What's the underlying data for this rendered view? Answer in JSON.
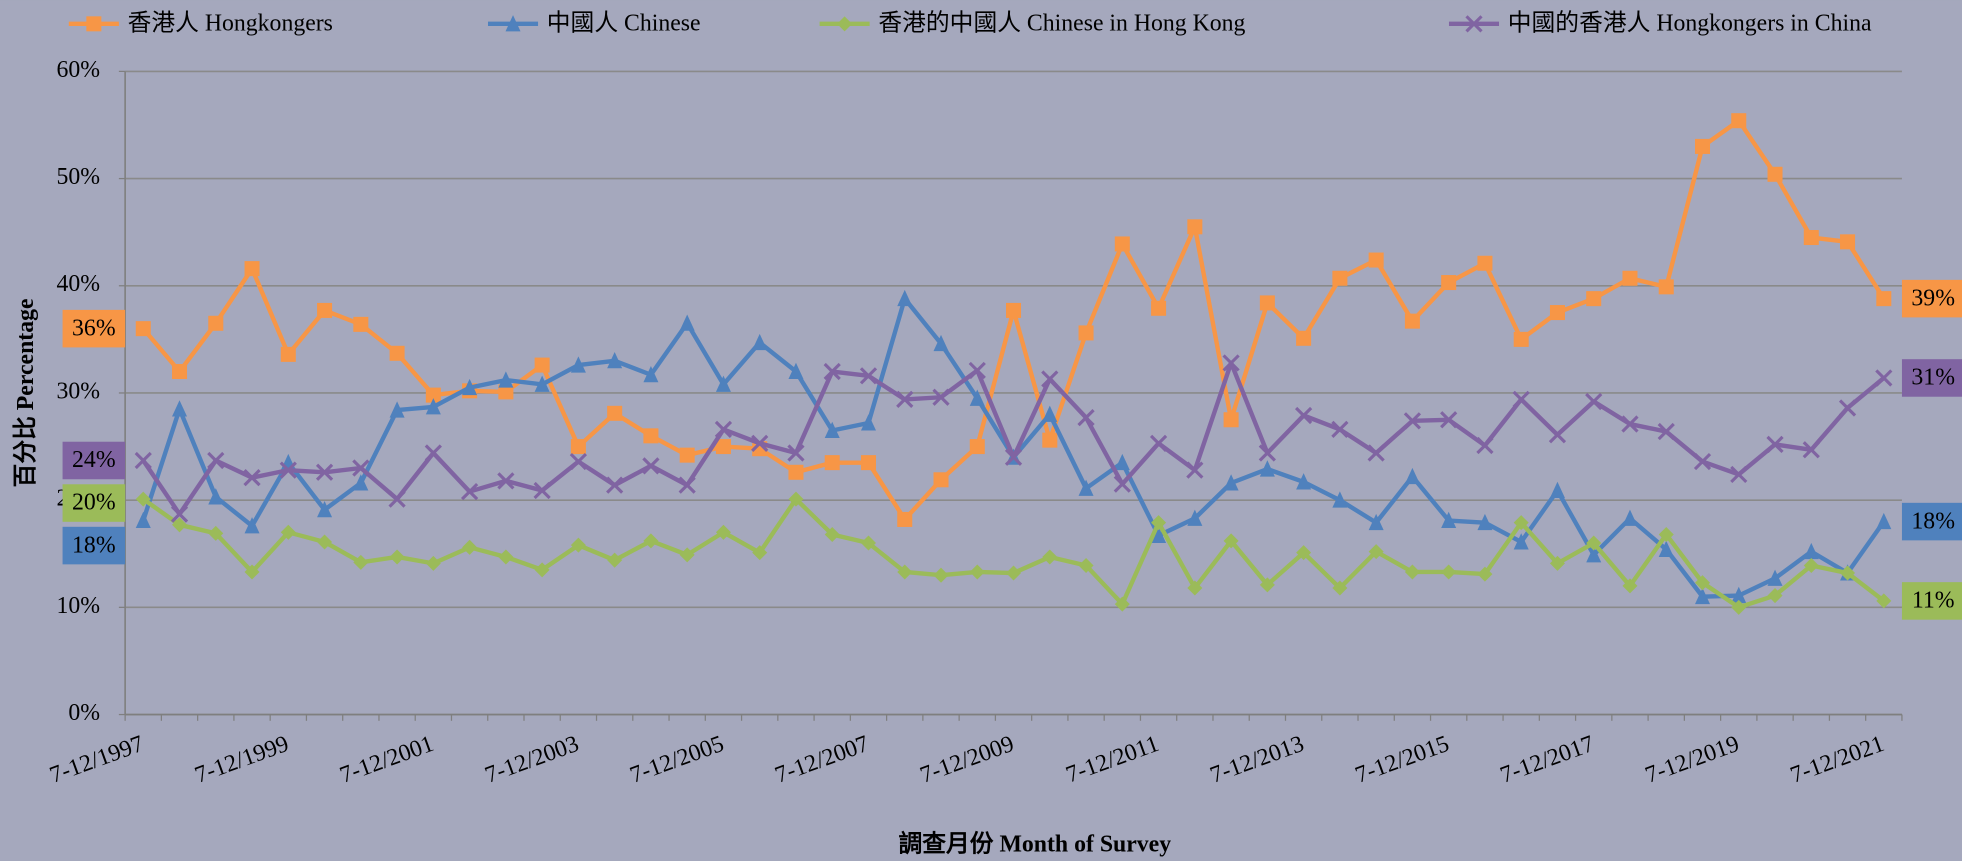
{
  "chart_data": {
    "type": "line",
    "categories": [
      "7-12/1997",
      null,
      null,
      null,
      "7-12/1999",
      null,
      null,
      null,
      "7-12/2001",
      null,
      null,
      null,
      "7-12/2003",
      null,
      null,
      null,
      "7-12/2005",
      null,
      null,
      null,
      "7-12/2007",
      null,
      null,
      null,
      "7-12/2009",
      null,
      null,
      null,
      "7-12/2011",
      null,
      null,
      null,
      "7-12/2013",
      null,
      null,
      null,
      "7-12/2015",
      null,
      null,
      null,
      "7-12/2017",
      null,
      null,
      null,
      "7-12/2019",
      null,
      null,
      null,
      "7-12/2021"
    ],
    "series": [
      {
        "name": "香港人 Hongkongers",
        "color": "#f79646",
        "marker": "square",
        "values": [
          36.0,
          32.0,
          36.5,
          41.6,
          33.6,
          37.7,
          36.4,
          33.7,
          29.8,
          30.2,
          30.1,
          32.6,
          25.0,
          28.1,
          26.0,
          24.2,
          25.0,
          24.8,
          22.6,
          23.5,
          23.5,
          18.2,
          21.9,
          25.0,
          37.7,
          25.6,
          35.6,
          43.9,
          37.9,
          45.5,
          27.5,
          38.4,
          35.1,
          40.7,
          42.4,
          36.7,
          40.3,
          42.1,
          35.0,
          37.5,
          38.8,
          40.7,
          39.9,
          53.0,
          55.4,
          50.4,
          44.5,
          44.1,
          38.8
        ],
        "value_labels": [
          "36%",
          null,
          null,
          null,
          null,
          null,
          null,
          null,
          null,
          null,
          null,
          null,
          null,
          null,
          null,
          null,
          null,
          null,
          null,
          null,
          null,
          null,
          null,
          null,
          null,
          null,
          null,
          null,
          null,
          null,
          null,
          null,
          null,
          null,
          null,
          null,
          null,
          null,
          null,
          null,
          null,
          null,
          null,
          null,
          null,
          null,
          null,
          null,
          "39%"
        ]
      },
      {
        "name": "中國人 Chinese",
        "color": "#4f81bd",
        "marker": "triangle",
        "values": [
          18.1,
          28.5,
          20.3,
          17.6,
          23.5,
          19.1,
          21.6,
          28.4,
          28.7,
          30.5,
          31.2,
          30.8,
          32.6,
          33.0,
          31.7,
          36.5,
          30.8,
          34.7,
          32.0,
          26.5,
          27.2,
          38.8,
          34.6,
          29.5,
          24.0,
          28.0,
          21.1,
          23.5,
          16.7,
          18.3,
          21.6,
          22.9,
          21.7,
          20.0,
          17.9,
          22.2,
          18.1,
          17.9,
          16.1,
          20.9,
          14.9,
          18.3,
          15.4,
          11.0,
          11.1,
          12.7,
          15.2,
          13.2,
          18.0
        ],
        "value_labels": [
          "18%",
          null,
          null,
          null,
          null,
          null,
          null,
          null,
          null,
          null,
          null,
          null,
          null,
          null,
          null,
          null,
          null,
          null,
          null,
          null,
          null,
          null,
          null,
          null,
          null,
          null,
          null,
          null,
          null,
          null,
          null,
          null,
          null,
          null,
          null,
          null,
          null,
          null,
          null,
          null,
          null,
          null,
          null,
          null,
          null,
          null,
          null,
          null,
          "18%"
        ]
      },
      {
        "name": "香港的中國人 Chinese in Hong Kong",
        "color": "#9bbb59",
        "marker": "diamond",
        "values": [
          20.1,
          17.7,
          16.9,
          13.3,
          17.0,
          16.1,
          14.2,
          14.7,
          14.1,
          15.6,
          14.7,
          13.5,
          15.8,
          14.4,
          16.2,
          14.9,
          17.0,
          15.1,
          20.1,
          16.8,
          16.0,
          13.3,
          13.0,
          13.3,
          13.2,
          14.7,
          13.9,
          10.3,
          17.9,
          11.8,
          16.2,
          12.1,
          15.1,
          11.8,
          15.2,
          13.3,
          13.3,
          13.1,
          17.9,
          14.1,
          16.0,
          12.0,
          16.8,
          12.3,
          10.0,
          11.1,
          13.9,
          13.2,
          10.6
        ],
        "value_labels": [
          "20%",
          null,
          null,
          null,
          null,
          null,
          null,
          null,
          null,
          null,
          null,
          null,
          null,
          null,
          null,
          null,
          null,
          null,
          null,
          null,
          null,
          null,
          null,
          null,
          null,
          null,
          null,
          null,
          null,
          null,
          null,
          null,
          null,
          null,
          null,
          null,
          null,
          null,
          null,
          null,
          null,
          null,
          null,
          null,
          null,
          null,
          null,
          null,
          "11%"
        ]
      },
      {
        "name": "中國的香港人 Hongkongers in China",
        "color": "#8064a2",
        "marker": "x",
        "values": [
          23.7,
          18.7,
          23.7,
          22.1,
          22.8,
          22.6,
          23.0,
          20.1,
          24.4,
          20.8,
          21.8,
          20.9,
          23.6,
          21.4,
          23.2,
          21.4,
          26.6,
          25.3,
          24.4,
          32.0,
          31.6,
          29.4,
          29.6,
          32.1,
          24.0,
          31.3,
          27.7,
          21.5,
          25.3,
          22.8,
          32.8,
          24.4,
          27.9,
          26.6,
          24.4,
          27.4,
          27.5,
          25.1,
          29.4,
          26.1,
          29.2,
          27.1,
          26.4,
          23.6,
          22.4,
          25.2,
          24.7,
          28.6,
          31.4
        ],
        "value_labels": [
          "24%",
          null,
          null,
          null,
          null,
          null,
          null,
          null,
          null,
          null,
          null,
          null,
          null,
          null,
          null,
          null,
          null,
          null,
          null,
          null,
          null,
          null,
          null,
          null,
          null,
          null,
          null,
          null,
          null,
          null,
          null,
          null,
          null,
          null,
          null,
          null,
          null,
          null,
          null,
          null,
          null,
          null,
          null,
          null,
          null,
          null,
          null,
          null,
          "31%"
        ]
      }
    ],
    "ylim": [
      0,
      60
    ],
    "yticks": [
      {
        "value": 0,
        "label": "0%"
      },
      {
        "value": 10,
        "label": "10%"
      },
      {
        "value": 20,
        "label": "20%"
      },
      {
        "value": 30,
        "label": "30%"
      },
      {
        "value": 40,
        "label": "40%"
      },
      {
        "value": 50,
        "label": "50%"
      },
      {
        "value": 60,
        "label": "60%"
      }
    ],
    "y_label": "百分比 Percentage",
    "x_label": "調查月份 Month of Survey",
    "grid": true,
    "legend": "top"
  }
}
